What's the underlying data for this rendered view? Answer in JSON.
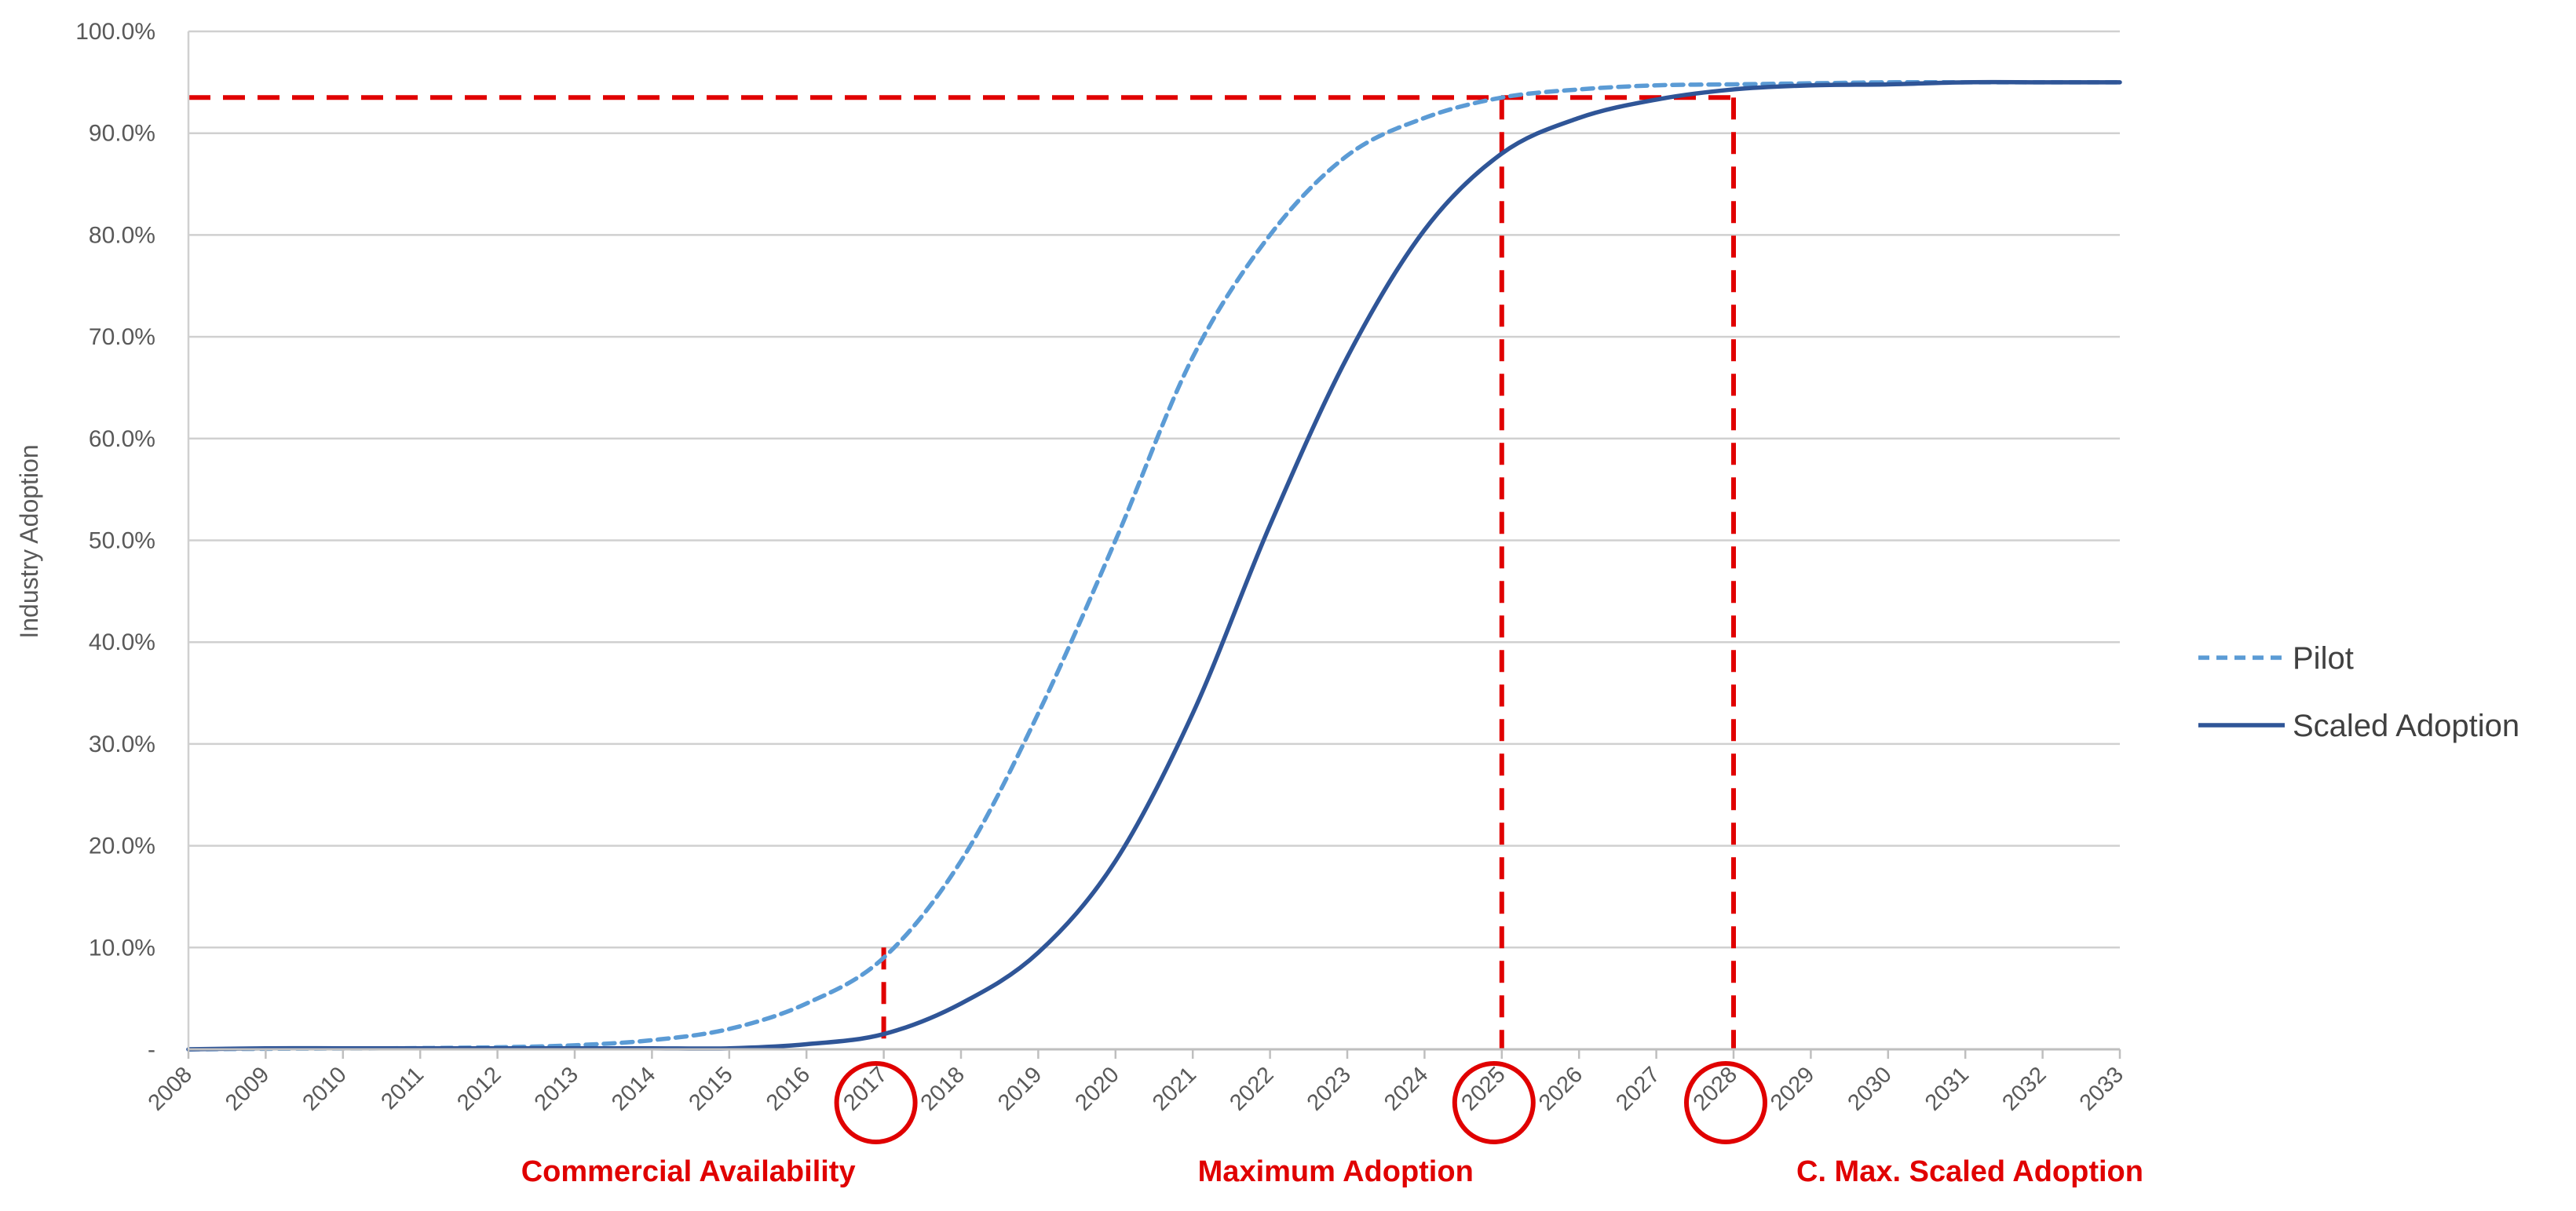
{
  "chart_data": {
    "type": "line",
    "ylabel": "Industry Adoption",
    "xlabel": "",
    "title": "",
    "x": [
      "2008",
      "2009",
      "2010",
      "2011",
      "2012",
      "2013",
      "2014",
      "2015",
      "2016",
      "2017",
      "2018",
      "2019",
      "2020",
      "2021",
      "2022",
      "2023",
      "2024",
      "2025",
      "2026",
      "2027",
      "2028",
      "2029",
      "2030",
      "2031",
      "2032",
      "2033"
    ],
    "y_ticks": [
      {
        "value": 0,
        "label": "-"
      },
      {
        "value": 0.1,
        "label": "10.0%"
      },
      {
        "value": 0.2,
        "label": "20.0%"
      },
      {
        "value": 0.3,
        "label": "30.0%"
      },
      {
        "value": 0.4,
        "label": "40.0%"
      },
      {
        "value": 0.5,
        "label": "50.0%"
      },
      {
        "value": 0.6,
        "label": "60.0%"
      },
      {
        "value": 0.7,
        "label": "70.0%"
      },
      {
        "value": 0.8,
        "label": "80.0%"
      },
      {
        "value": 0.9,
        "label": "90.0%"
      },
      {
        "value": 1.0,
        "label": "100.0%"
      }
    ],
    "ylim": [
      0,
      1.0
    ],
    "grid": true,
    "legend_position": "right",
    "series": [
      {
        "name": "Pilot",
        "color": "#5b9bd5",
        "style": "dashed",
        "values": [
          0.0,
          0.0005,
          0.0008,
          0.0012,
          0.002,
          0.004,
          0.009,
          0.02,
          0.045,
          0.09,
          0.185,
          0.33,
          0.5,
          0.68,
          0.8,
          0.878,
          0.915,
          0.935,
          0.943,
          0.947,
          0.948,
          0.949,
          0.95,
          0.95,
          0.95,
          0.95
        ]
      },
      {
        "name": "Scaled Adoption",
        "color": "#2f5597",
        "style": "solid",
        "values": [
          0.0,
          0.001,
          0.001,
          0.001,
          0.001,
          0.001,
          0.001,
          0.001,
          0.005,
          0.015,
          0.045,
          0.095,
          0.185,
          0.33,
          0.515,
          0.68,
          0.805,
          0.88,
          0.915,
          0.933,
          0.943,
          0.947,
          0.948,
          0.95,
          0.95,
          0.95
        ]
      }
    ],
    "reference_lines": {
      "color": "#e00000",
      "horizontal_level": 0.935,
      "vertical_years": [
        "2017",
        "2025",
        "2028"
      ],
      "vertical_tops": [
        0.1,
        0.935,
        0.935
      ],
      "horizontal_to_year": "2028"
    },
    "circled_years": [
      "2017",
      "2025",
      "2028"
    ],
    "annotations": [
      {
        "text": "Commercial Availability",
        "year": "2017"
      },
      {
        "text": "Maximum Adoption",
        "year": "2025"
      },
      {
        "text": "C. Max. Scaled Adoption",
        "year": "2028"
      }
    ]
  }
}
